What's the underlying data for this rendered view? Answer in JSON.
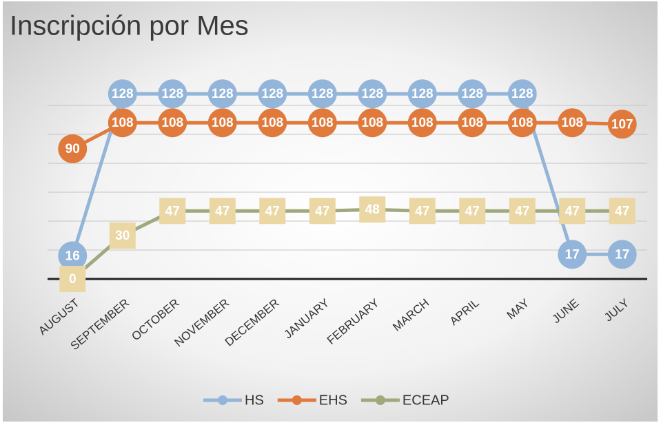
{
  "chart_data": {
    "type": "line",
    "title": "Inscripción por Mes",
    "categories": [
      "AUGUST",
      "SEPTEMBER",
      "OCTOBER",
      "NOVEMBER",
      "DECEMBER",
      "JANUARY",
      "FEBRUARY",
      "MARCH",
      "APRIL",
      "MAY",
      "JUNE",
      "JULY"
    ],
    "series": [
      {
        "name": "HS",
        "color": "#93b5d9",
        "marker": "circle",
        "values": [
          16,
          128,
          128,
          128,
          128,
          128,
          128,
          128,
          128,
          128,
          17,
          17
        ]
      },
      {
        "name": "EHS",
        "color": "#e07a3c",
        "marker": "circle",
        "values": [
          90,
          108,
          108,
          108,
          108,
          108,
          108,
          108,
          108,
          108,
          108,
          107
        ]
      },
      {
        "name": "ECEAP",
        "color": "#9ea97c",
        "marker": "square",
        "marker_color": "#ead7a4",
        "values": [
          0,
          30,
          47,
          47,
          47,
          47,
          48,
          47,
          47,
          47,
          47,
          47
        ]
      }
    ],
    "ylim": [
      0,
      140
    ],
    "yticks": [
      0,
      20,
      40,
      60,
      80,
      100,
      120
    ],
    "grid": true,
    "legend": "bottom"
  }
}
